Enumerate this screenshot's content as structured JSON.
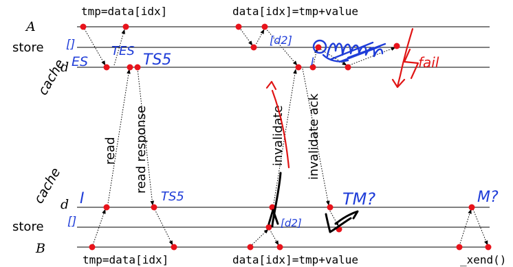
{
  "labels": {
    "thread_a": "A",
    "thread_b": "B",
    "store_a": "store",
    "store_b": "store",
    "cache_a": "cache",
    "cache_b": "cache",
    "d_a": "d",
    "d_b": "d"
  },
  "code": {
    "top_read": "tmp=data[idx]",
    "top_write": "data[idx]=tmp+value",
    "bottom_read": "tmp=data[idx]",
    "bottom_write": "data[idx]=tmp+value",
    "bottom_end": "_xend()"
  },
  "messages": {
    "read": "read",
    "read_response": "read response",
    "invalidate": "invalidate",
    "invalidate_ack": "invalidate ack"
  },
  "annotations": {
    "store_a_value": "[]",
    "state_es": "ES",
    "state_tes": "TES",
    "state_ts5_top": "TS5",
    "store_a_write": "[d2]",
    "cache_a_state": "I",
    "fail": "fail",
    "cache_b_state": "I",
    "store_b_value": "[]",
    "state_ts5_bottom": "TS5",
    "store_b_write": "[d2]",
    "state_tm": "TM?",
    "state_m": "M?"
  }
}
